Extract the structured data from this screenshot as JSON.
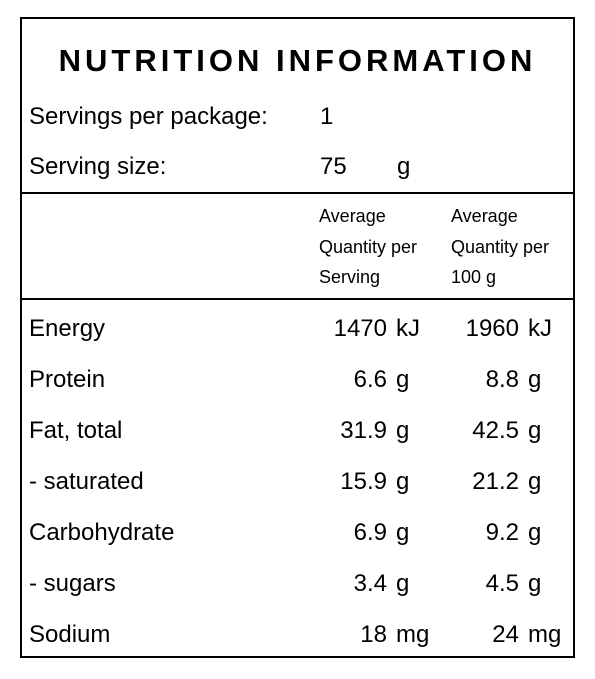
{
  "title": "NUTRITION INFORMATION",
  "servings": {
    "label": "Servings per package:",
    "value": "1"
  },
  "serving_size": {
    "label": "Serving size:",
    "value": "75",
    "unit": "g"
  },
  "columns": {
    "per_serving": [
      "Average",
      "Quantity per",
      "Serving"
    ],
    "per_100g": [
      "Average",
      "Quantity per",
      "100 g"
    ]
  },
  "nutrients": [
    {
      "name": "Energy",
      "per_serving": "1470",
      "unit_serving": "kJ",
      "per_100g": "1960",
      "unit_100g": "kJ"
    },
    {
      "name": "Protein",
      "per_serving": "6.6",
      "unit_serving": "g",
      "per_100g": "8.8",
      "unit_100g": "g"
    },
    {
      "name": "Fat, total",
      "per_serving": "31.9",
      "unit_serving": "g",
      "per_100g": "42.5",
      "unit_100g": "g"
    },
    {
      "name": "- saturated",
      "per_serving": "15.9",
      "unit_serving": "g",
      "per_100g": "21.2",
      "unit_100g": "g"
    },
    {
      "name": "Carbohydrate",
      "per_serving": "6.9",
      "unit_serving": "g",
      "per_100g": "9.2",
      "unit_100g": "g"
    },
    {
      "name": "- sugars",
      "per_serving": "3.4",
      "unit_serving": "g",
      "per_100g": "4.5",
      "unit_100g": "g"
    },
    {
      "name": "Sodium",
      "per_serving": "18",
      "unit_serving": "mg",
      "per_100g": "24",
      "unit_100g": "mg"
    }
  ]
}
